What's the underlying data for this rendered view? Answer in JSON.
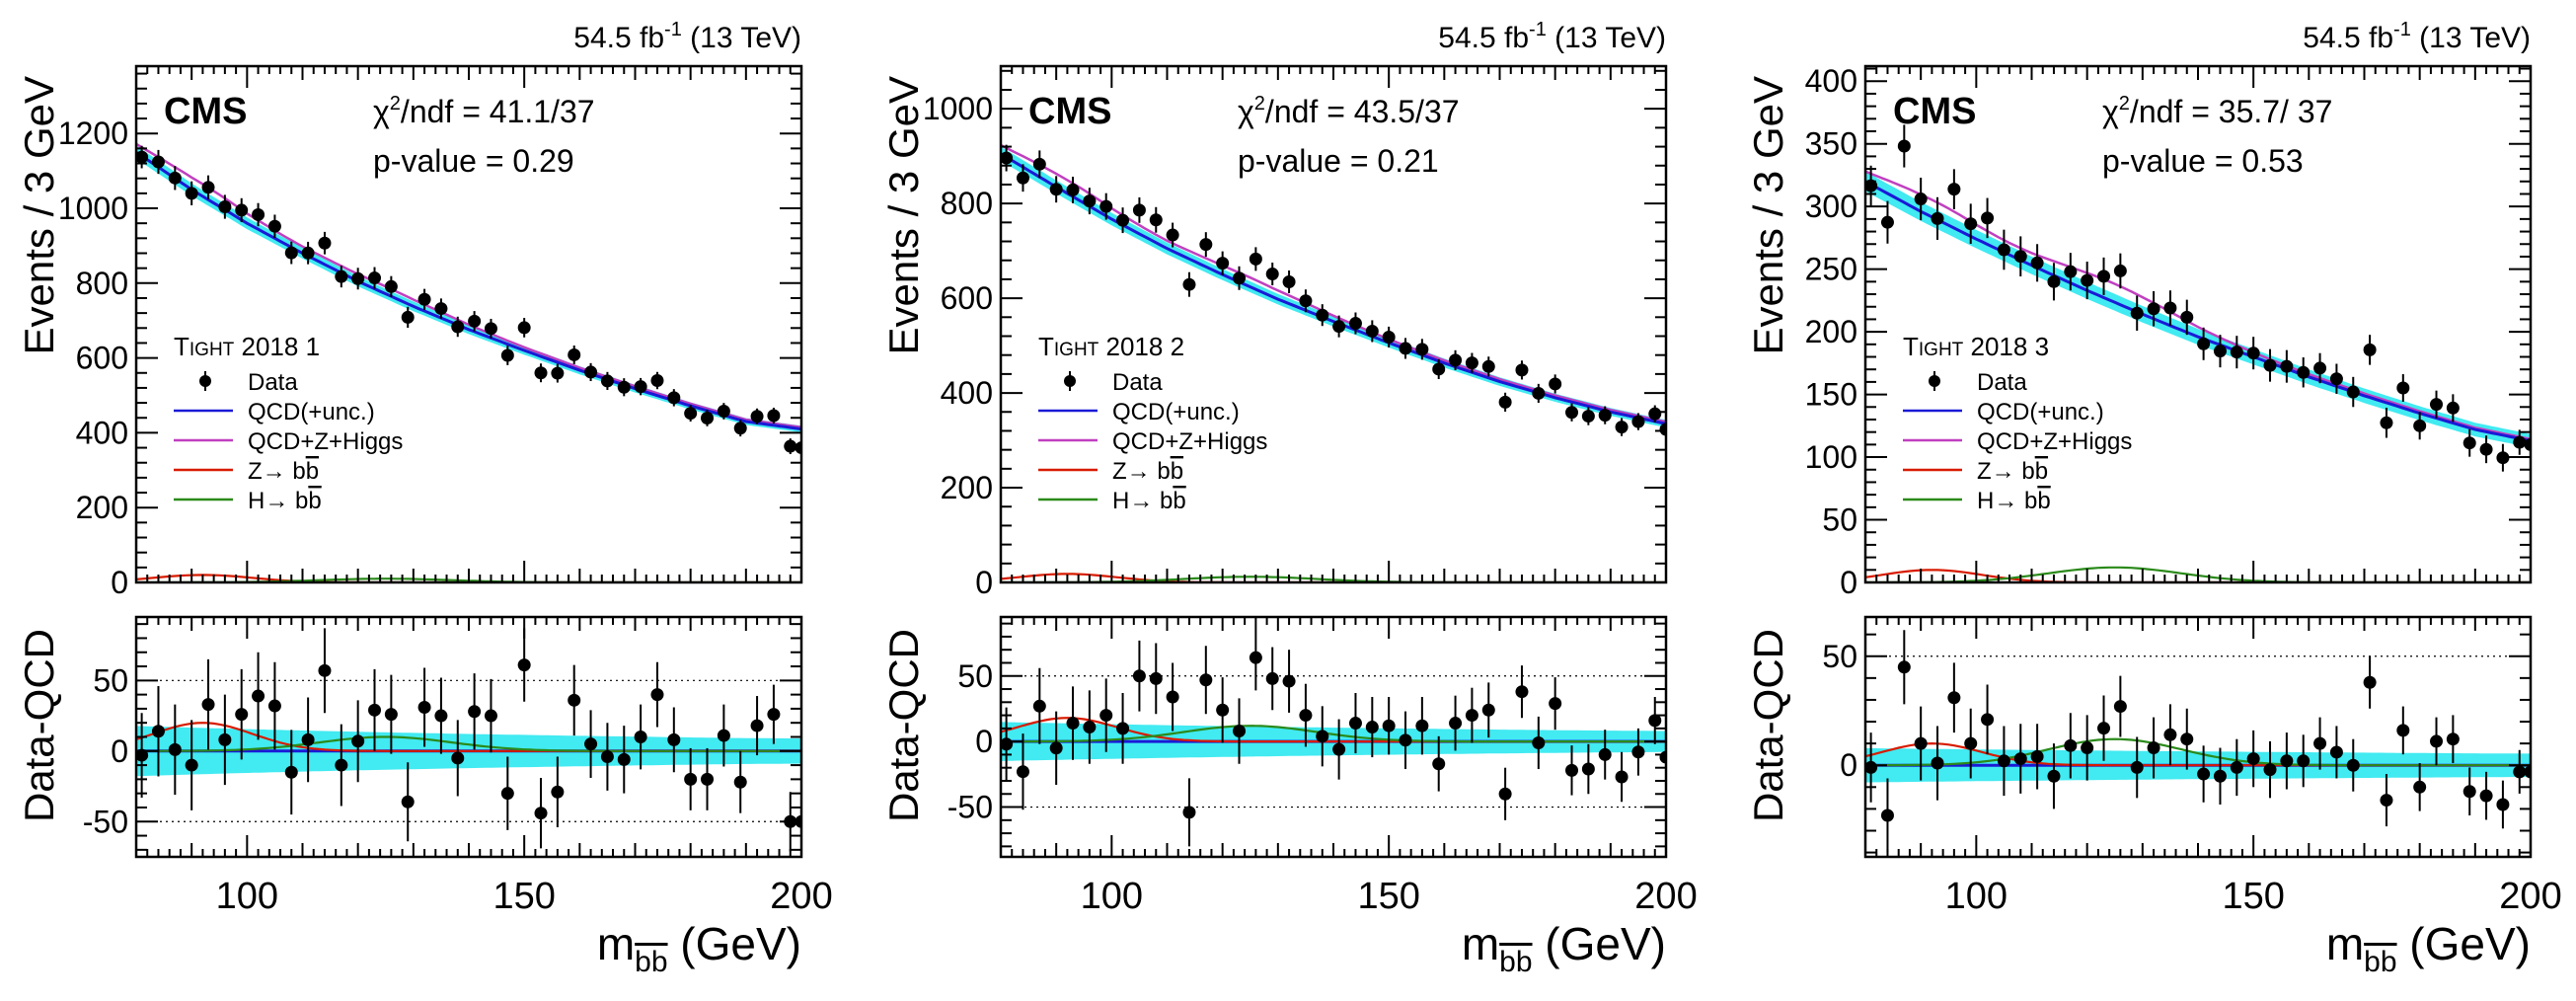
{
  "figure": {
    "lumi": "54.5 fb",
    "lumi_sup": "-1",
    "energy": "(13 TeV)",
    "cms_label": "CMS",
    "ylabel_main": "Events / 3 GeV",
    "ylabel_ratio": "Data-QCD",
    "xlabel_prefix": "m",
    "xlabel_sub": "bb",
    "xlabel_unit": "(GeV)",
    "legend": {
      "data": "Data",
      "qcd": "QCD(+unc.)",
      "qcdzh": "QCD+Z+Higgs",
      "z": "Z→ bb",
      "h": "H→ bb"
    },
    "colors": {
      "qcd": "#1a1ad6",
      "band": "#2ee8f0",
      "qcdzh": "#c040c0",
      "z": "#d81b00",
      "h": "#2a8a1a",
      "data": "#000000"
    }
  },
  "chart_data": [
    {
      "type": "scatter",
      "panel": "Tight 2018 1",
      "category_label": "TIGHT 2018 1",
      "chi2": "χ",
      "chi2_rest": "/ndf = 41.1/37",
      "pvalue": "p-value = 0.29",
      "xlim": [
        80,
        200
      ],
      "ylim": [
        0,
        1380
      ],
      "yticks": [
        0,
        200,
        400,
        600,
        800,
        1000,
        1200
      ],
      "ratio_ylim": [
        -75,
        95
      ],
      "ratio_yticks": [
        -50,
        0,
        50
      ],
      "ratio_grid": [
        -50,
        0,
        50
      ],
      "xticks": [
        100,
        150,
        200
      ],
      "qcd_curve": [
        [
          80,
          1150
        ],
        [
          90,
          1050
        ],
        [
          100,
          960
        ],
        [
          110,
          880
        ],
        [
          120,
          805
        ],
        [
          130,
          738
        ],
        [
          140,
          676
        ],
        [
          150,
          620
        ],
        [
          160,
          567
        ],
        [
          170,
          518
        ],
        [
          180,
          472
        ],
        [
          190,
          430
        ],
        [
          200,
          410
        ]
      ],
      "z_peak": {
        "mean": 92,
        "sigma": 9,
        "amp": 20
      },
      "h_peak": {
        "mean": 125,
        "sigma": 12,
        "amp": 10
      },
      "data_x": [
        81,
        84,
        87,
        90,
        93,
        96,
        99,
        102,
        105,
        108,
        111,
        114,
        117,
        120,
        123,
        126,
        129,
        132,
        135,
        138,
        141,
        144,
        147,
        150,
        153,
        156,
        159,
        162,
        165,
        168,
        171,
        174,
        177,
        180,
        183,
        186,
        189,
        192,
        195,
        198,
        200
      ],
      "data_resid": [
        -3,
        14,
        1,
        -10,
        33,
        8,
        26,
        39,
        32,
        -15,
        8,
        57,
        -10,
        7,
        29,
        26,
        -36,
        31,
        25,
        -5,
        28,
        25,
        -30,
        61,
        -44,
        -29,
        36,
        5,
        -4,
        -6,
        10,
        40,
        8,
        -20,
        -20,
        11,
        -22,
        18,
        26,
        -50,
        -50
      ],
      "data_err": [
        30,
        32,
        32,
        32,
        32,
        32,
        32,
        31,
        31,
        30,
        30,
        30,
        29,
        29,
        29,
        28,
        28,
        28,
        27,
        27,
        27,
        26,
        26,
        26,
        25,
        25,
        25,
        24,
        24,
        24,
        23,
        23,
        23,
        22,
        22,
        22,
        22,
        21,
        21,
        21,
        21
      ]
    },
    {
      "type": "scatter",
      "panel": "Tight 2018 2",
      "category_label": "TIGHT 2018 2",
      "chi2": "χ",
      "chi2_rest": "/ndf = 43.5/37",
      "pvalue": "p-value = 0.21",
      "xlim": [
        80,
        200
      ],
      "ylim": [
        0,
        1090
      ],
      "yticks": [
        0,
        200,
        400,
        600,
        800,
        1000
      ],
      "ratio_ylim": [
        -88,
        95
      ],
      "ratio_yticks": [
        -50,
        0,
        50
      ],
      "ratio_grid": [
        -50,
        0,
        50
      ],
      "xticks": [
        100,
        150,
        200
      ],
      "qcd_curve": [
        [
          80,
          905
        ],
        [
          90,
          835
        ],
        [
          100,
          767
        ],
        [
          110,
          705
        ],
        [
          120,
          650
        ],
        [
          130,
          598
        ],
        [
          140,
          551
        ],
        [
          150,
          506
        ],
        [
          160,
          463
        ],
        [
          170,
          424
        ],
        [
          180,
          390
        ],
        [
          190,
          360
        ],
        [
          200,
          335
        ]
      ],
      "z_peak": {
        "mean": 92,
        "sigma": 9,
        "amp": 18
      },
      "h_peak": {
        "mean": 125,
        "sigma": 12,
        "amp": 12
      },
      "data_x": [
        81,
        84,
        87,
        90,
        93,
        96,
        99,
        102,
        105,
        108,
        111,
        114,
        117,
        120,
        123,
        126,
        129,
        132,
        135,
        138,
        141,
        144,
        147,
        150,
        153,
        156,
        159,
        162,
        165,
        168,
        171,
        174,
        177,
        180,
        183,
        186,
        189,
        192,
        195,
        198,
        200
      ],
      "data_resid": [
        -2,
        -23,
        27,
        -5,
        14,
        11,
        20,
        10,
        50,
        48,
        34,
        -54,
        47,
        24,
        8,
        64,
        48,
        46,
        20,
        4,
        -6,
        14,
        11,
        12,
        1,
        12,
        -17,
        14,
        20,
        24,
        -40,
        38,
        -1,
        29,
        -22,
        -21,
        -10,
        -27,
        -8,
        16,
        -12
      ],
      "data_err": [
        28,
        29,
        29,
        28,
        28,
        28,
        28,
        27,
        27,
        27,
        26,
        26,
        26,
        25,
        25,
        25,
        24,
        24,
        24,
        23,
        23,
        23,
        23,
        22,
        22,
        22,
        21,
        21,
        21,
        21,
        20,
        20,
        20,
        20,
        19,
        19,
        19,
        19,
        18,
        18,
        18
      ]
    },
    {
      "type": "scatter",
      "panel": "Tight 2018 3",
      "category_label": "TIGHT 2018 3",
      "chi2": "χ",
      "chi2_rest": "/ndf = 35.7/ 37",
      "pvalue": "p-value = 0.53",
      "xlim": [
        80,
        200
      ],
      "ylim": [
        0,
        412
      ],
      "yticks": [
        0,
        50,
        100,
        150,
        200,
        250,
        300,
        350,
        400
      ],
      "ratio_ylim": [
        -42,
        68
      ],
      "ratio_yticks": [
        0,
        50
      ],
      "ratio_grid": [
        0,
        50
      ],
      "xticks": [
        100,
        150,
        200
      ],
      "qcd_curve": [
        [
          80,
          320
        ],
        [
          90,
          296
        ],
        [
          100,
          274
        ],
        [
          110,
          253
        ],
        [
          120,
          233
        ],
        [
          130,
          214
        ],
        [
          140,
          196
        ],
        [
          150,
          180
        ],
        [
          160,
          164
        ],
        [
          170,
          149
        ],
        [
          180,
          135
        ],
        [
          190,
          122
        ],
        [
          200,
          113
        ]
      ],
      "z_peak": {
        "mean": 92,
        "sigma": 9,
        "amp": 10
      },
      "h_peak": {
        "mean": 125,
        "sigma": 12,
        "amp": 12
      },
      "data_x": [
        81,
        84,
        87,
        90,
        93,
        96,
        99,
        102,
        105,
        108,
        111,
        114,
        117,
        120,
        123,
        126,
        129,
        132,
        135,
        138,
        141,
        144,
        147,
        150,
        153,
        156,
        159,
        162,
        165,
        168,
        171,
        174,
        177,
        180,
        183,
        186,
        189,
        192,
        195,
        198,
        200
      ],
      "data_resid": [
        -1,
        -23,
        45,
        10,
        1,
        31,
        10,
        21,
        2,
        3,
        4,
        -5,
        9,
        8,
        17,
        27,
        -1,
        8,
        14,
        12,
        -4,
        -5,
        -1,
        3,
        -2,
        2,
        2,
        10,
        6,
        0,
        38,
        -16,
        16,
        -10,
        11,
        12,
        -12,
        -14,
        -18,
        -3,
        -3
      ],
      "data_err": [
        16,
        17,
        17,
        17,
        17,
        16,
        16,
        16,
        16,
        16,
        15,
        15,
        15,
        15,
        15,
        14,
        14,
        14,
        14,
        14,
        13,
        13,
        13,
        13,
        13,
        13,
        12,
        12,
        12,
        12,
        12,
        12,
        11,
        11,
        11,
        11,
        11,
        11,
        11,
        10,
        10
      ]
    }
  ]
}
